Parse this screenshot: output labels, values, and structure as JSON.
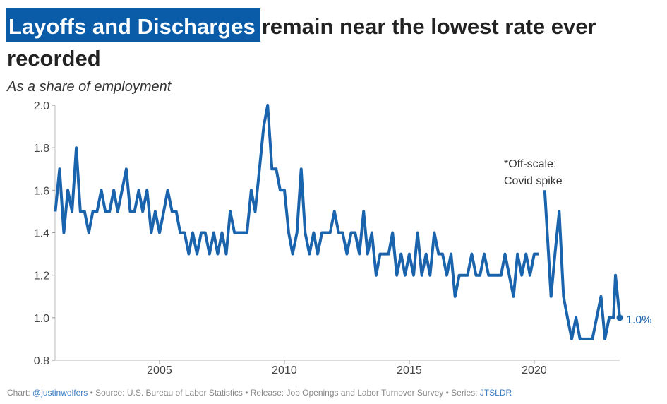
{
  "chart_data": {
    "type": "line",
    "title_highlight": "Layoffs and Discharges",
    "title": "remain near the lowest rate ever",
    "title_line2": "recorded",
    "subtitle": "As a share of employment",
    "annotations": [
      "*Off-scale:",
      "Covid spike",
      "1.0%"
    ],
    "footer": {
      "credit": "Chart:",
      "handle": "@justinwolfers",
      "source": "• Source: U.S. Bureau of Labor Statistics • Release: Job Openings and Labor Turnover Survey • Series:",
      "series_id": "JTSLDR"
    },
    "xlim": [
      2000.82,
      2023.42
    ],
    "xticks": [
      2005,
      2010,
      2015,
      2020
    ],
    "ylim": [
      0.8,
      2.0
    ],
    "yticks": [
      {
        "value": 2.0,
        "label": "2.0"
      },
      1.8,
      1.6,
      1.4,
      1.2,
      {
        "value": 1.0,
        "label": "1.0"
      },
      0.8
    ],
    "grid": false,
    "x": [
      2000.83,
      2001.0,
      2001.17,
      2001.33,
      2001.5,
      2001.67,
      2001.83,
      2002.0,
      2002.17,
      2002.33,
      2002.5,
      2002.67,
      2002.83,
      2003.0,
      2003.17,
      2003.33,
      2003.5,
      2003.67,
      2003.83,
      2004.0,
      2004.17,
      2004.33,
      2004.5,
      2004.67,
      2004.83,
      2005.0,
      2005.17,
      2005.33,
      2005.5,
      2005.67,
      2005.83,
      2006.0,
      2006.17,
      2006.33,
      2006.5,
      2006.67,
      2006.83,
      2007.0,
      2007.17,
      2007.33,
      2007.5,
      2007.67,
      2007.83,
      2008.0,
      2008.17,
      2008.33,
      2008.5,
      2008.67,
      2008.83,
      2009.0,
      2009.17,
      2009.33,
      2009.5,
      2009.67,
      2009.83,
      2010.0,
      2010.17,
      2010.33,
      2010.5,
      2010.67,
      2010.83,
      2011.0,
      2011.17,
      2011.33,
      2011.5,
      2011.67,
      2011.83,
      2012.0,
      2012.17,
      2012.33,
      2012.5,
      2012.67,
      2012.83,
      2013.0,
      2013.17,
      2013.33,
      2013.5,
      2013.67,
      2013.83,
      2014.0,
      2014.17,
      2014.33,
      2014.5,
      2014.67,
      2014.83,
      2015.0,
      2015.17,
      2015.33,
      2015.5,
      2015.67,
      2015.83,
      2016.0,
      2016.17,
      2016.33,
      2016.5,
      2016.67,
      2016.83,
      2017.0,
      2017.17,
      2017.33,
      2017.5,
      2017.67,
      2017.83,
      2018.0,
      2018.17,
      2018.33,
      2018.5,
      2018.67,
      2018.83,
      2019.0,
      2019.17,
      2019.33,
      2019.5,
      2019.67,
      2019.83,
      2020.0,
      2020.17,
      2020.33,
      2020.42,
      2020.67,
      2020.83,
      2021.0,
      2021.17,
      2021.33,
      2021.5,
      2021.67,
      2021.83,
      2022.0,
      2022.17,
      2022.33,
      2022.5,
      2022.67,
      2022.83,
      2023.0,
      2023.17,
      2023.25,
      2023.42
    ],
    "series": [
      {
        "name": "Layoffs and Discharges",
        "color": "#1a63ad",
        "values": [
          1.5,
          1.7,
          1.4,
          1.6,
          1.5,
          1.8,
          1.5,
          1.5,
          1.4,
          1.5,
          1.5,
          1.6,
          1.5,
          1.5,
          1.6,
          1.5,
          1.6,
          1.7,
          1.5,
          1.5,
          1.6,
          1.5,
          1.6,
          1.4,
          1.5,
          1.4,
          1.5,
          1.6,
          1.5,
          1.5,
          1.4,
          1.4,
          1.3,
          1.4,
          1.3,
          1.4,
          1.4,
          1.3,
          1.4,
          1.3,
          1.4,
          1.3,
          1.5,
          1.4,
          1.4,
          1.4,
          1.4,
          1.6,
          1.5,
          1.7,
          1.9,
          2.0,
          1.7,
          1.7,
          1.6,
          1.6,
          1.4,
          1.3,
          1.4,
          1.7,
          1.4,
          1.3,
          1.4,
          1.3,
          1.4,
          1.4,
          1.4,
          1.5,
          1.4,
          1.4,
          1.3,
          1.4,
          1.4,
          1.3,
          1.5,
          1.3,
          1.4,
          1.2,
          1.3,
          1.3,
          1.3,
          1.4,
          1.2,
          1.3,
          1.2,
          1.3,
          1.2,
          1.4,
          1.2,
          1.3,
          1.2,
          1.4,
          1.3,
          1.3,
          1.2,
          1.3,
          1.1,
          1.2,
          1.2,
          1.2,
          1.3,
          1.2,
          1.2,
          1.3,
          1.2,
          1.2,
          1.2,
          1.2,
          1.3,
          1.2,
          1.1,
          1.3,
          1.2,
          1.3,
          1.2,
          1.3,
          1.3,
          null,
          1.6,
          1.1,
          1.3,
          1.5,
          1.1,
          1.0,
          0.9,
          1.0,
          0.9,
          0.9,
          0.9,
          0.9,
          1.0,
          1.1,
          0.9,
          1.0,
          1.0,
          1.2,
          1.0
        ]
      }
    ]
  }
}
